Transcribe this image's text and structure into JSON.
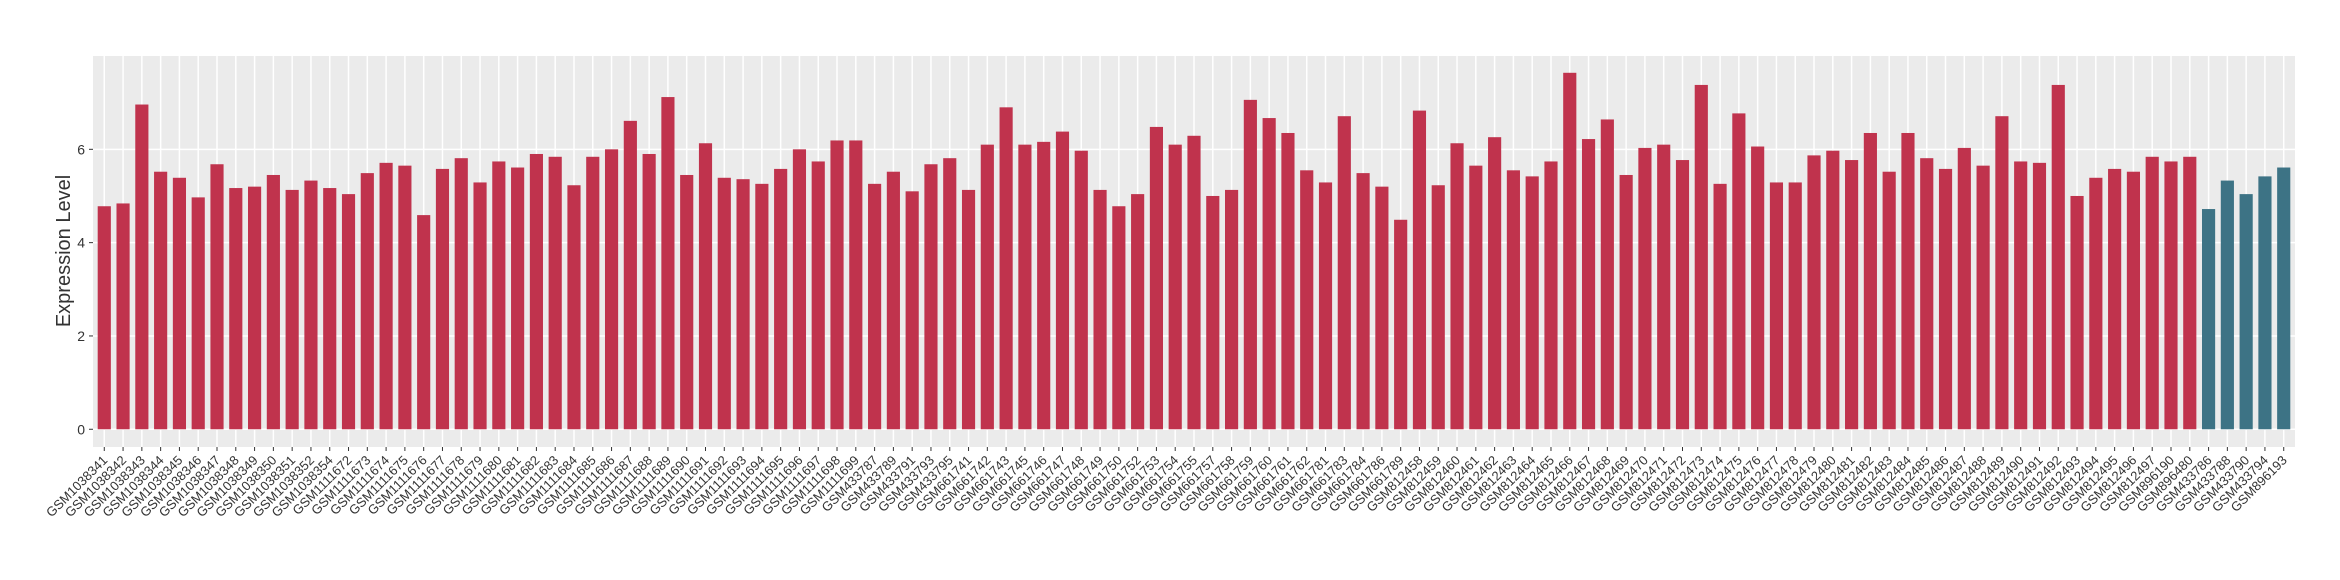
{
  "chart_data": {
    "type": "bar",
    "y_label": "Expression Level",
    "categories": [
      "GSM1038341",
      "GSM1038342",
      "GSM1038343",
      "GSM1038344",
      "GSM1038345",
      "GSM1038346",
      "GSM1038347",
      "GSM1038348",
      "GSM1038349",
      "GSM1038350",
      "GSM1038351",
      "GSM1038352",
      "GSM1038354",
      "GSM1111672",
      "GSM1111673",
      "GSM1111674",
      "GSM1111675",
      "GSM1111676",
      "GSM1111677",
      "GSM1111678",
      "GSM1111679",
      "GSM1111680",
      "GSM1111681",
      "GSM1111682",
      "GSM1111683",
      "GSM1111684",
      "GSM1111685",
      "GSM1111686",
      "GSM1111687",
      "GSM1111688",
      "GSM1111689",
      "GSM1111690",
      "GSM1111691",
      "GSM1111692",
      "GSM1111693",
      "GSM1111694",
      "GSM1111695",
      "GSM1111696",
      "GSM1111697",
      "GSM1111698",
      "GSM1111699",
      "GSM433787",
      "GSM433789",
      "GSM433791",
      "GSM433793",
      "GSM433795",
      "GSM661741",
      "GSM661742",
      "GSM661743",
      "GSM661745",
      "GSM661746",
      "GSM661747",
      "GSM661748",
      "GSM661749",
      "GSM661750",
      "GSM661752",
      "GSM661753",
      "GSM661754",
      "GSM661755",
      "GSM661757",
      "GSM661758",
      "GSM661759",
      "GSM661760",
      "GSM661761",
      "GSM661762",
      "GSM661781",
      "GSM661783",
      "GSM661784",
      "GSM661786",
      "GSM661789",
      "GSM812458",
      "GSM812459",
      "GSM812460",
      "GSM812461",
      "GSM812462",
      "GSM812463",
      "GSM812464",
      "GSM812465",
      "GSM812466",
      "GSM812467",
      "GSM812468",
      "GSM812469",
      "GSM812470",
      "GSM812471",
      "GSM812472",
      "GSM812473",
      "GSM812474",
      "GSM812475",
      "GSM812476",
      "GSM812477",
      "GSM812478",
      "GSM812479",
      "GSM812480",
      "GSM812481",
      "GSM812482",
      "GSM812483",
      "GSM812484",
      "GSM812485",
      "GSM812486",
      "GSM812487",
      "GSM812488",
      "GSM812489",
      "GSM812490",
      "GSM812491",
      "GSM812492",
      "GSM812493",
      "GSM812494",
      "GSM812495",
      "GSM812496",
      "GSM812497",
      "GSM896190",
      "GSM896480",
      "GSM433786",
      "GSM433788",
      "GSM433790",
      "GSM433794",
      "GSM896193"
    ],
    "values": [
      4.78,
      4.84,
      6.96,
      5.52,
      5.39,
      4.97,
      5.68,
      5.17,
      5.2,
      5.45,
      5.13,
      5.33,
      5.17,
      5.04,
      5.49,
      5.71,
      5.65,
      4.59,
      5.58,
      5.81,
      5.29,
      5.74,
      5.61,
      5.9,
      5.84,
      5.23,
      5.84,
      6.0,
      6.61,
      5.9,
      7.12,
      5.45,
      6.13,
      5.39,
      5.36,
      5.26,
      5.58,
      6.0,
      5.74,
      6.19,
      6.19,
      5.26,
      5.52,
      5.1,
      5.68,
      5.81,
      5.13,
      6.1,
      6.9,
      6.1,
      6.16,
      6.38,
      5.97,
      5.13,
      4.78,
      5.04,
      6.48,
      6.1,
      6.29,
      5.0,
      5.13,
      7.06,
      6.67,
      6.35,
      5.55,
      5.29,
      6.71,
      5.49,
      5.2,
      4.49,
      6.83,
      5.23,
      6.13,
      5.65,
      6.26,
      5.55,
      5.42,
      5.74,
      7.64,
      6.22,
      6.64,
      5.45,
      6.03,
      6.1,
      5.77,
      7.38,
      5.26,
      6.77,
      6.06,
      5.29,
      5.29,
      5.87,
      5.97,
      5.77,
      6.35,
      5.52,
      6.35,
      5.81,
      5.58,
      6.03,
      5.65,
      6.71,
      5.74,
      5.71,
      7.38,
      5.0,
      5.39,
      5.58,
      5.52,
      5.84,
      5.74,
      5.84,
      4.72,
      5.33,
      5.04,
      5.42,
      5.61
    ],
    "colors": [
      "#c0334d",
      "#c0334d",
      "#c0334d",
      "#c0334d",
      "#c0334d",
      "#c0334d",
      "#c0334d",
      "#c0334d",
      "#c0334d",
      "#c0334d",
      "#c0334d",
      "#c0334d",
      "#c0334d",
      "#c0334d",
      "#c0334d",
      "#c0334d",
      "#c0334d",
      "#c0334d",
      "#c0334d",
      "#c0334d",
      "#c0334d",
      "#c0334d",
      "#c0334d",
      "#c0334d",
      "#c0334d",
      "#c0334d",
      "#c0334d",
      "#c0334d",
      "#c0334d",
      "#c0334d",
      "#c0334d",
      "#c0334d",
      "#c0334d",
      "#c0334d",
      "#c0334d",
      "#c0334d",
      "#c0334d",
      "#c0334d",
      "#c0334d",
      "#c0334d",
      "#c0334d",
      "#c0334d",
      "#c0334d",
      "#c0334d",
      "#c0334d",
      "#c0334d",
      "#c0334d",
      "#c0334d",
      "#c0334d",
      "#c0334d",
      "#c0334d",
      "#c0334d",
      "#c0334d",
      "#c0334d",
      "#c0334d",
      "#c0334d",
      "#c0334d",
      "#c0334d",
      "#c0334d",
      "#c0334d",
      "#c0334d",
      "#c0334d",
      "#c0334d",
      "#c0334d",
      "#c0334d",
      "#c0334d",
      "#c0334d",
      "#c0334d",
      "#c0334d",
      "#c0334d",
      "#c0334d",
      "#c0334d",
      "#c0334d",
      "#c0334d",
      "#c0334d",
      "#c0334d",
      "#c0334d",
      "#c0334d",
      "#c0334d",
      "#c0334d",
      "#c0334d",
      "#c0334d",
      "#c0334d",
      "#c0334d",
      "#c0334d",
      "#c0334d",
      "#c0334d",
      "#c0334d",
      "#c0334d",
      "#c0334d",
      "#c0334d",
      "#c0334d",
      "#c0334d",
      "#c0334d",
      "#c0334d",
      "#c0334d",
      "#c0334d",
      "#c0334d",
      "#c0334d",
      "#c0334d",
      "#c0334d",
      "#c0334d",
      "#c0334d",
      "#c0334d",
      "#c0334d",
      "#c0334d",
      "#c0334d",
      "#c0334d",
      "#c0334d",
      "#c0334d",
      "#c0334d",
      "#c0334d",
      "#3d7385",
      "#3d7385",
      "#3d7385",
      "#3d7385",
      "#3d7385"
    ],
    "ylim": [
      -0.38,
      8.0
    ],
    "yticks": [
      0,
      2,
      4,
      6
    ],
    "grid": true
  }
}
